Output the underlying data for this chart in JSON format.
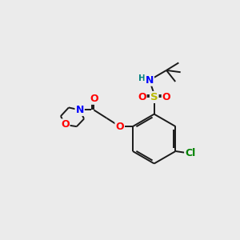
{
  "bg_color": "#ebebeb",
  "bond_color": "#1a1a1a",
  "atom_colors": {
    "N": "#0000ff",
    "O": "#ff0000",
    "S": "#b8b800",
    "Cl": "#008000",
    "H": "#008080",
    "C": "#1a1a1a"
  },
  "figsize": [
    3.0,
    3.0
  ],
  "dpi": 100,
  "lw": 1.4,
  "fs": 8.5
}
